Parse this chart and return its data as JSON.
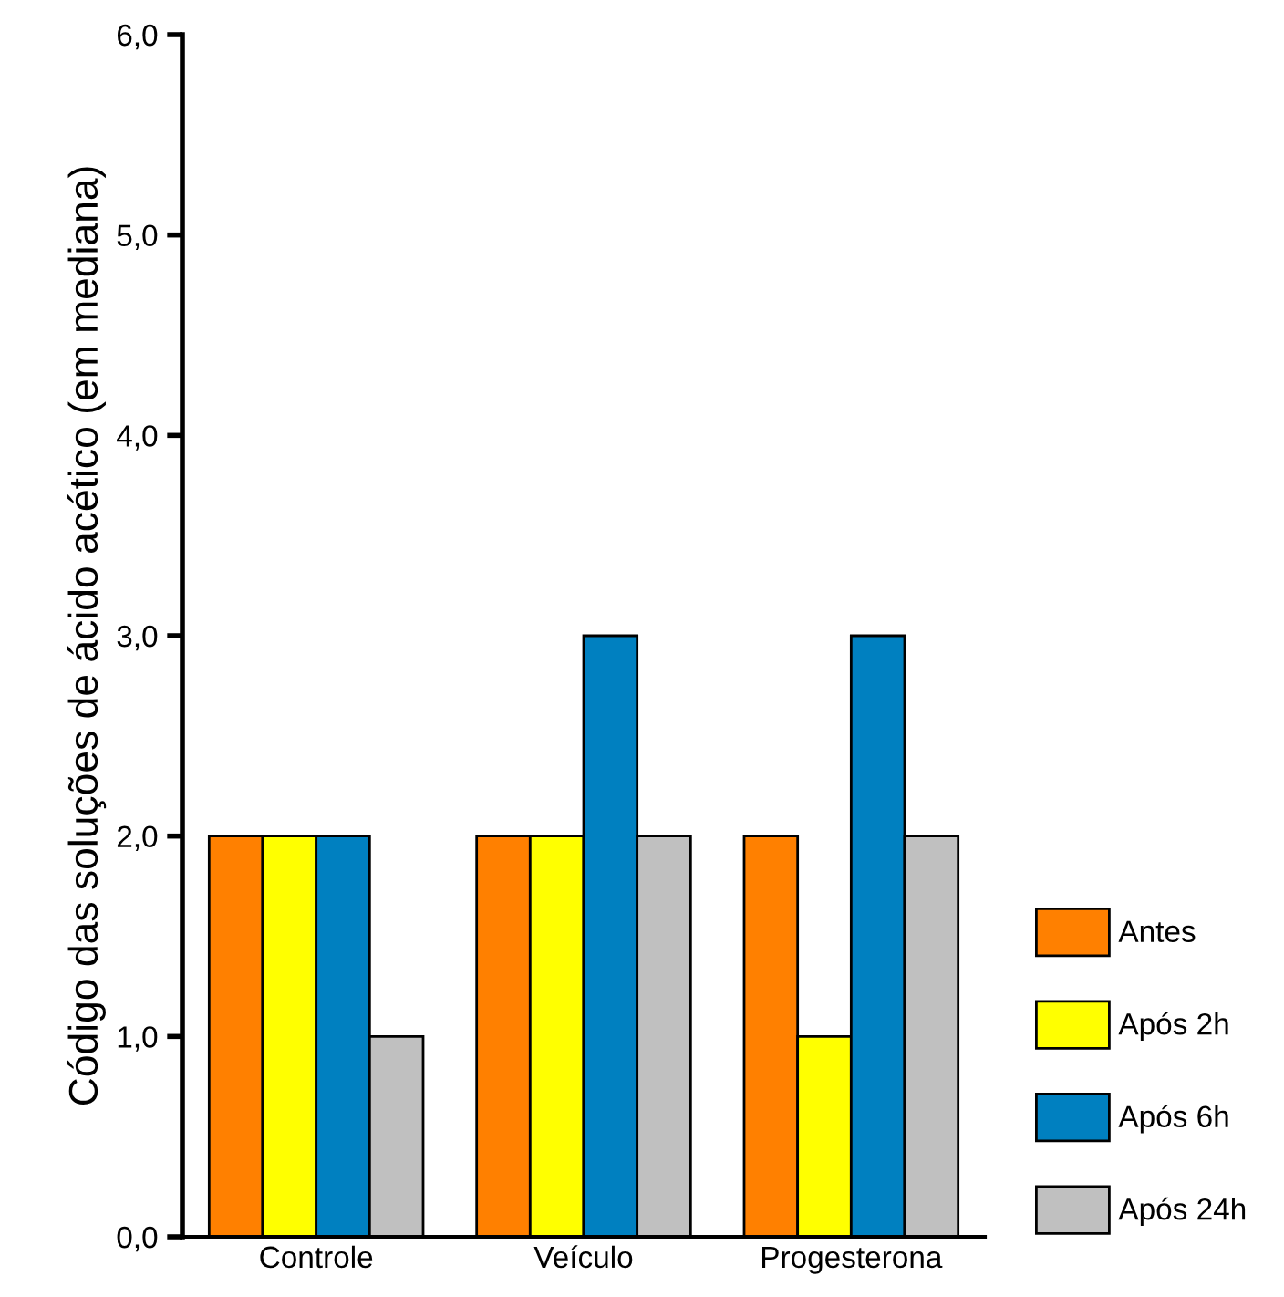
{
  "chart_data": {
    "type": "bar",
    "ylabel": "Código das soluções de ácido acético (em mediana)",
    "categories": [
      "Controle",
      "Veículo",
      "Progesterona"
    ],
    "series": [
      {
        "name": "Antes",
        "color": "#ff8000",
        "values": [
          2,
          2,
          2
        ]
      },
      {
        "name": "Após 2h",
        "color": "#ffff00",
        "values": [
          2,
          2,
          1
        ]
      },
      {
        "name": "Após 6h",
        "color": "#0080c0",
        "values": [
          2,
          3,
          3
        ]
      },
      {
        "name": "Após 24h",
        "color": "#c0c0c0",
        "values": [
          1,
          2,
          2
        ]
      }
    ],
    "ylim": [
      0,
      6
    ],
    "yticks": [
      {
        "value": 0,
        "label": "0,0"
      },
      {
        "value": 1,
        "label": "1,0"
      },
      {
        "value": 2,
        "label": "2,0"
      },
      {
        "value": 3,
        "label": "3,0"
      },
      {
        "value": 4,
        "label": "4,0"
      },
      {
        "value": 5,
        "label": "5,0"
      },
      {
        "value": 6,
        "label": "6,0"
      }
    ],
    "grid": false,
    "legend": "bottom right"
  }
}
